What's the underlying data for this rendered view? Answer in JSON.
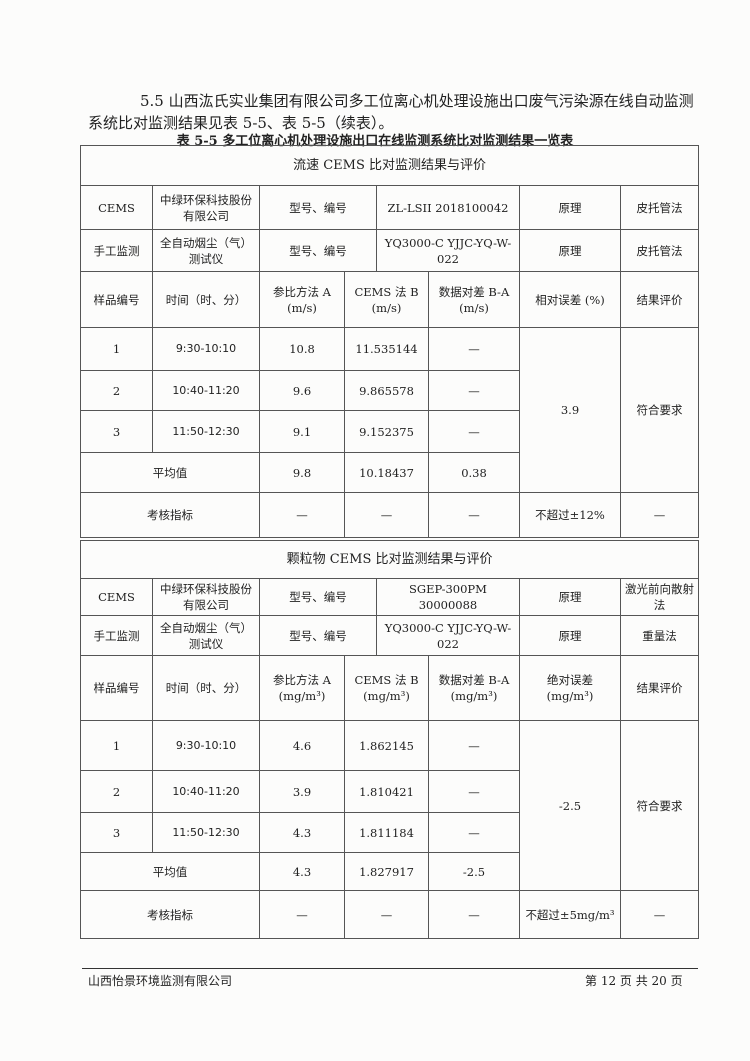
{
  "intro": "5.5 山西汯氏实业集团有限公司多工位离心机处理设施出口废气污染源在线自动监测系统比对监测结果见表 5-5、表 5-5（续表）。",
  "caption": "表 5-5 多工位离心机处理设施出口在线监测系统比对监测结果一览表",
  "tables": [
    {
      "section": "流速 CEMS 比对监测结果与评价",
      "cems": {
        "label": "CEMS",
        "maker": "中绿环保科技股份有限公司",
        "model_label": "型号、编号",
        "model": "ZL-LSII 2018100042",
        "principle_label": "原理",
        "principle": "皮托管法"
      },
      "manual": {
        "label": "手工监测",
        "maker": "全自动烟尘（气）测试仪",
        "model_label": "型号、编号",
        "model": "YQ3000-C YJJC-YQ-W-022",
        "principle_label": "原理",
        "principle": "皮托管法"
      },
      "headers": [
        "样品编号",
        "时间（时、分）",
        "参比方法 A (m/s)",
        "CEMS 法 B (m/s)",
        "数据对差 B-A (m/s)",
        "相对误差 (%)",
        "结果评价"
      ],
      "rows": [
        {
          "no": "1",
          "time": "9:30-10:10",
          "a": "10.8",
          "b": "11.535144",
          "diff": "—"
        },
        {
          "no": "2",
          "time": "10:40-11:20",
          "a": "9.6",
          "b": "9.865578",
          "diff": "—"
        },
        {
          "no": "3",
          "time": "11:50-12:30",
          "a": "9.1",
          "b": "9.152375",
          "diff": "—"
        }
      ],
      "error": "3.9",
      "result": "符合要求",
      "avg": {
        "label": "平均值",
        "a": "9.8",
        "b": "10.18437",
        "diff": "0.38"
      },
      "criteria": {
        "label": "考核指标",
        "a": "—",
        "b": "—",
        "diff": "—",
        "error": "不超过±12%",
        "result": "—"
      }
    },
    {
      "section": "颗粒物 CEMS 比对监测结果与评价",
      "cems": {
        "label": "CEMS",
        "maker": "中绿环保科技股份有限公司",
        "model_label": "型号、编号",
        "model": "SGEP-300PM 30000088",
        "principle_label": "原理",
        "principle": "激光前向散射法"
      },
      "manual": {
        "label": "手工监测",
        "maker": "全自动烟尘（气）测试仪",
        "model_label": "型号、编号",
        "model": "YQ3000-C YJJC-YQ-W-022",
        "principle_label": "原理",
        "principle": "重量法"
      },
      "headers": [
        "样品编号",
        "时间（时、分）",
        "参比方法 A (mg/m³)",
        "CEMS 法 B (mg/m³)",
        "数据对差 B-A (mg/m³)",
        "绝对误差 (mg/m³)",
        "结果评价"
      ],
      "rows": [
        {
          "no": "1",
          "time": "9:30-10:10",
          "a": "4.6",
          "b": "1.862145",
          "diff": "—"
        },
        {
          "no": "2",
          "time": "10:40-11:20",
          "a": "3.9",
          "b": "1.810421",
          "diff": "—"
        },
        {
          "no": "3",
          "time": "11:50-12:30",
          "a": "4.3",
          "b": "1.811184",
          "diff": "—"
        }
      ],
      "error": "-2.5",
      "result": "符合要求",
      "avg": {
        "label": "平均值",
        "a": "4.3",
        "b": "1.827917",
        "diff": "-2.5"
      },
      "criteria": {
        "label": "考核指标",
        "a": "—",
        "b": "—",
        "diff": "—",
        "error": "不超过±5mg/m³",
        "result": "—"
      }
    }
  ],
  "footer": {
    "company": "山西怡景环境监测有限公司",
    "page": "第 12 页 共 20 页"
  }
}
